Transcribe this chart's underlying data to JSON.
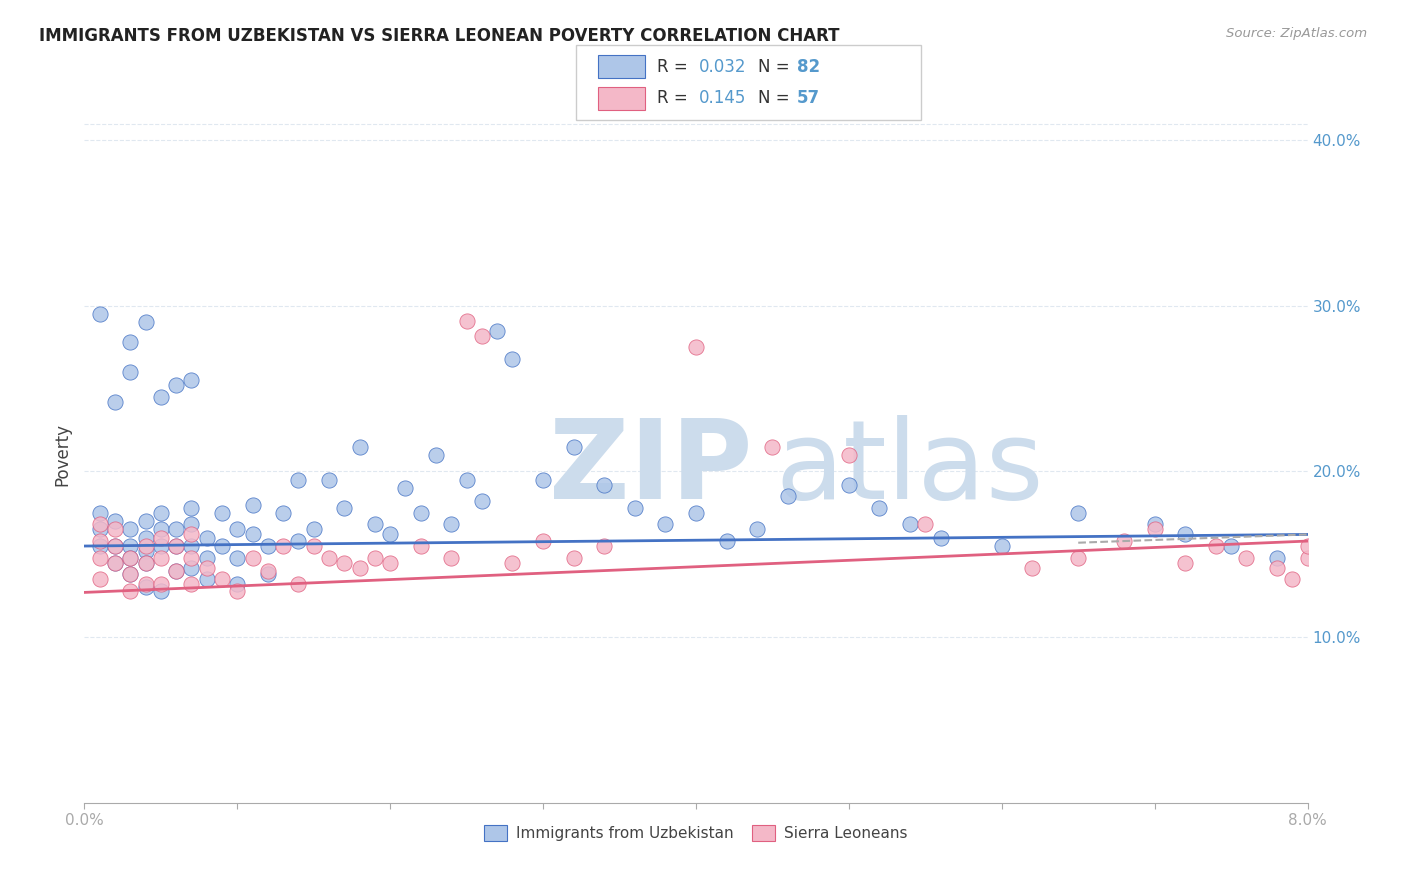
{
  "title": "IMMIGRANTS FROM UZBEKISTAN VS SIERRA LEONEAN POVERTY CORRELATION CHART",
  "source": "Source: ZipAtlas.com",
  "ylabel": "Poverty",
  "series1_label": "Immigrants from Uzbekistan",
  "series1_color": "#aec6e8",
  "series1_edge_color": "#4472c4",
  "series1_line_color": "#4472c4",
  "series1_R": 0.032,
  "series1_N": 82,
  "series2_label": "Sierra Leoneans",
  "series2_color": "#f4b8c8",
  "series2_edge_color": "#e06080",
  "series2_line_color": "#e06080",
  "series2_R": 0.145,
  "series2_N": 57,
  "xlim": [
    0.0,
    0.08
  ],
  "ylim": [
    0.0,
    0.42
  ],
  "yticks": [
    0.0,
    0.1,
    0.2,
    0.3,
    0.4
  ],
  "ytick_labels_right": [
    "",
    "10.0%",
    "20.0%",
    "30.0%",
    "40.0%"
  ],
  "background_color": "#ffffff",
  "grid_color": "#e0e8f0",
  "watermark_zip_color": "#ccdcec",
  "watermark_atlas_color": "#ccdcec",
  "tick_color": "#5599cc",
  "axis_color": "#aaaaaa",
  "title_color": "#222222",
  "source_color": "#999999",
  "legend_edge_color": "#cccccc",
  "dashed_line_color": "#aaaaaa",
  "blue_x": [
    0.001,
    0.001,
    0.001,
    0.002,
    0.002,
    0.002,
    0.003,
    0.003,
    0.003,
    0.003,
    0.004,
    0.004,
    0.004,
    0.004,
    0.004,
    0.005,
    0.005,
    0.005,
    0.005,
    0.006,
    0.006,
    0.006,
    0.007,
    0.007,
    0.007,
    0.007,
    0.008,
    0.008,
    0.008,
    0.009,
    0.009,
    0.01,
    0.01,
    0.01,
    0.011,
    0.011,
    0.012,
    0.012,
    0.013,
    0.014,
    0.014,
    0.015,
    0.016,
    0.017,
    0.018,
    0.019,
    0.02,
    0.021,
    0.022,
    0.023,
    0.024,
    0.025,
    0.026,
    0.027,
    0.028,
    0.03,
    0.032,
    0.034,
    0.036,
    0.038,
    0.04,
    0.042,
    0.044,
    0.046,
    0.05,
    0.052,
    0.054,
    0.056,
    0.06,
    0.065,
    0.07,
    0.072,
    0.075,
    0.078,
    0.001,
    0.002,
    0.003,
    0.003,
    0.004,
    0.005,
    0.006,
    0.007
  ],
  "blue_y": [
    0.175,
    0.165,
    0.155,
    0.17,
    0.155,
    0.145,
    0.165,
    0.155,
    0.148,
    0.138,
    0.17,
    0.16,
    0.152,
    0.145,
    0.13,
    0.175,
    0.165,
    0.155,
    0.128,
    0.165,
    0.155,
    0.14,
    0.178,
    0.168,
    0.155,
    0.142,
    0.16,
    0.148,
    0.135,
    0.175,
    0.155,
    0.165,
    0.148,
    0.132,
    0.18,
    0.162,
    0.155,
    0.138,
    0.175,
    0.195,
    0.158,
    0.165,
    0.195,
    0.178,
    0.215,
    0.168,
    0.162,
    0.19,
    0.175,
    0.21,
    0.168,
    0.195,
    0.182,
    0.285,
    0.268,
    0.195,
    0.215,
    0.192,
    0.178,
    0.168,
    0.175,
    0.158,
    0.165,
    0.185,
    0.192,
    0.178,
    0.168,
    0.16,
    0.155,
    0.175,
    0.168,
    0.162,
    0.155,
    0.148,
    0.295,
    0.242,
    0.26,
    0.278,
    0.29,
    0.245,
    0.252,
    0.255
  ],
  "pink_x": [
    0.001,
    0.001,
    0.001,
    0.001,
    0.002,
    0.002,
    0.002,
    0.003,
    0.003,
    0.003,
    0.004,
    0.004,
    0.004,
    0.005,
    0.005,
    0.005,
    0.006,
    0.006,
    0.007,
    0.007,
    0.007,
    0.008,
    0.009,
    0.01,
    0.011,
    0.012,
    0.013,
    0.014,
    0.015,
    0.016,
    0.017,
    0.018,
    0.019,
    0.02,
    0.022,
    0.024,
    0.025,
    0.026,
    0.028,
    0.03,
    0.032,
    0.034,
    0.04,
    0.045,
    0.05,
    0.055,
    0.062,
    0.065,
    0.068,
    0.07,
    0.072,
    0.074,
    0.076,
    0.078,
    0.079,
    0.08,
    0.08
  ],
  "pink_y": [
    0.168,
    0.158,
    0.148,
    0.135,
    0.165,
    0.155,
    0.145,
    0.148,
    0.138,
    0.128,
    0.155,
    0.145,
    0.132,
    0.16,
    0.148,
    0.132,
    0.155,
    0.14,
    0.162,
    0.148,
    0.132,
    0.142,
    0.135,
    0.128,
    0.148,
    0.14,
    0.155,
    0.132,
    0.155,
    0.148,
    0.145,
    0.142,
    0.148,
    0.145,
    0.155,
    0.148,
    0.291,
    0.282,
    0.145,
    0.158,
    0.148,
    0.155,
    0.275,
    0.215,
    0.21,
    0.168,
    0.142,
    0.148,
    0.158,
    0.165,
    0.145,
    0.155,
    0.148,
    0.142,
    0.135,
    0.148,
    0.155
  ]
}
